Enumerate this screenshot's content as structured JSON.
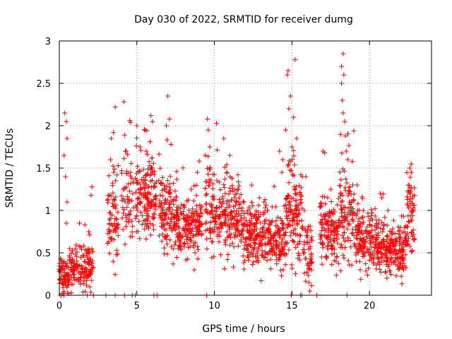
{
  "chart_data": {
    "type": "scatter",
    "title": "Day 030 of 2022, SRMTID for receiver dumg",
    "xlabel": "GPS time / hours",
    "ylabel": "SRMTID / TECUs",
    "xlim": [
      0,
      24
    ],
    "ylim": [
      0,
      3
    ],
    "xticks": [
      0,
      5,
      10,
      15,
      20
    ],
    "yticks": [
      0,
      0.5,
      1,
      1.5,
      2,
      2.5,
      3
    ],
    "ytick_labels": [
      "0",
      "0.5",
      "1",
      "1.5",
      "2",
      "2.5",
      "3"
    ],
    "grid": true,
    "marker": "+",
    "color": "#ff0000",
    "segments": [
      {
        "t0": 0.0,
        "t1": 0.6,
        "base": 0.22,
        "spread": 0.15,
        "n": 70,
        "spikes": [
          [
            0.35,
            2.15
          ],
          [
            0.45,
            2.05
          ],
          [
            0.5,
            1.85
          ],
          [
            0.3,
            1.65
          ],
          [
            0.4,
            1.4
          ],
          [
            0.5,
            1.1
          ],
          [
            0.45,
            0.85
          ]
        ]
      },
      {
        "t0": 0.6,
        "t1": 2.2,
        "base": 0.32,
        "spread": 0.18,
        "n": 150,
        "spikes": [
          [
            1.3,
            0.85
          ],
          [
            1.9,
            0.75
          ],
          [
            2.1,
            1.28
          ],
          [
            2.05,
            1.18
          ]
        ]
      },
      {
        "t0": 3.1,
        "t1": 3.8,
        "base": 0.9,
        "spread": 0.4,
        "n": 70,
        "spikes": [
          [
            3.35,
            1.85
          ],
          [
            3.6,
            2.22
          ],
          [
            3.3,
            1.6
          ],
          [
            3.5,
            1.45
          ]
        ]
      },
      {
        "t0": 4.0,
        "t1": 4.8,
        "base": 1.1,
        "spread": 0.35,
        "n": 60,
        "spikes": [
          [
            4.3,
            1.7
          ],
          [
            4.6,
            1.45
          ]
        ]
      },
      {
        "t0": 4.9,
        "t1": 6.3,
        "base": 1.15,
        "spread": 0.35,
        "n": 160,
        "spikes": [
          [
            5.0,
            2.0
          ],
          [
            5.2,
            1.75
          ],
          [
            5.9,
            2.12
          ],
          [
            6.0,
            2.05
          ],
          [
            5.6,
            1.7
          ]
        ]
      },
      {
        "t0": 6.4,
        "t1": 7.6,
        "base": 0.95,
        "spread": 0.32,
        "n": 140,
        "spikes": [
          [
            7.0,
            2.35
          ],
          [
            7.1,
            2.08
          ],
          [
            6.9,
            2.0
          ],
          [
            7.2,
            1.78
          ]
        ]
      },
      {
        "t0": 7.6,
        "t1": 9.2,
        "base": 0.8,
        "spread": 0.25,
        "n": 170,
        "spikes": [
          [
            8.5,
            1.25
          ],
          [
            8.9,
            1.45
          ],
          [
            8.7,
            0.3
          ]
        ]
      },
      {
        "t0": 9.4,
        "t1": 10.2,
        "base": 0.95,
        "spread": 0.35,
        "n": 80,
        "spikes": [
          [
            9.55,
            2.08
          ],
          [
            9.6,
            1.95
          ],
          [
            9.7,
            1.75
          ],
          [
            9.4,
            1.65
          ]
        ]
      },
      {
        "t0": 10.2,
        "t1": 11.8,
        "base": 0.85,
        "spread": 0.3,
        "n": 170,
        "spikes": [
          [
            10.6,
            1.85
          ],
          [
            11.0,
            1.65
          ],
          [
            10.8,
            1.45
          ]
        ]
      },
      {
        "t0": 11.8,
        "t1": 13.6,
        "base": 0.68,
        "spread": 0.25,
        "n": 200,
        "spikes": [
          [
            12.4,
            1.3
          ],
          [
            13.2,
            1.1
          ],
          [
            12.9,
            1.15
          ]
        ]
      },
      {
        "t0": 13.6,
        "t1": 14.6,
        "base": 0.62,
        "spread": 0.22,
        "n": 110,
        "spikes": [
          [
            14.2,
            1.7
          ],
          [
            14.4,
            1.6
          ],
          [
            14.35,
            1.45
          ]
        ]
      },
      {
        "t0": 14.6,
        "t1": 15.7,
        "base": 0.95,
        "spread": 0.4,
        "n": 130,
        "spikes": [
          [
            14.75,
            2.65
          ],
          [
            14.7,
            2.6
          ],
          [
            15.2,
            2.78
          ],
          [
            14.9,
            2.35
          ],
          [
            14.8,
            2.2
          ],
          [
            15.1,
            2.1
          ],
          [
            15.3,
            1.85
          ],
          [
            15.0,
            1.75
          ],
          [
            14.6,
            1.95
          ]
        ]
      },
      {
        "t0": 15.7,
        "t1": 16.3,
        "base": 0.5,
        "spread": 0.25,
        "n": 50,
        "spikes": [
          [
            15.9,
            1.4
          ],
          [
            15.8,
            1.0
          ],
          [
            16.1,
            0.15
          ],
          [
            16.15,
            0.05
          ]
        ]
      },
      {
        "t0": 16.8,
        "t1": 18.0,
        "base": 0.7,
        "spread": 0.28,
        "n": 130,
        "spikes": [
          [
            17.0,
            1.7
          ],
          [
            17.1,
            1.68
          ],
          [
            17.5,
            1.25
          ],
          [
            17.3,
            1.15
          ]
        ]
      },
      {
        "t0": 18.0,
        "t1": 19.0,
        "base": 1.0,
        "spread": 0.4,
        "n": 110,
        "spikes": [
          [
            18.3,
            2.85
          ],
          [
            18.2,
            2.7
          ],
          [
            18.35,
            2.6
          ],
          [
            18.2,
            2.5
          ],
          [
            18.25,
            2.3
          ],
          [
            18.3,
            2.15
          ],
          [
            18.4,
            2.05
          ],
          [
            18.45,
            1.88
          ],
          [
            18.5,
            1.7
          ],
          [
            18.6,
            1.6
          ]
        ]
      },
      {
        "t0": 19.0,
        "t1": 20.4,
        "base": 0.65,
        "spread": 0.25,
        "n": 150,
        "spikes": [
          [
            19.2,
            1.3
          ],
          [
            19.6,
            1.0
          ],
          [
            19.4,
            0.3
          ]
        ]
      },
      {
        "t0": 20.4,
        "t1": 21.6,
        "base": 0.55,
        "spread": 0.2,
        "n": 140,
        "spikes": [
          [
            20.7,
            1.2
          ],
          [
            20.8,
            1.15
          ],
          [
            21.2,
            1.0
          ]
        ]
      },
      {
        "t0": 21.6,
        "t1": 22.4,
        "base": 0.5,
        "spread": 0.2,
        "n": 90,
        "spikes": [
          [
            22.0,
            0.8
          ],
          [
            22.2,
            0.3
          ]
        ]
      },
      {
        "t0": 22.4,
        "t1": 22.9,
        "base": 0.9,
        "spread": 0.35,
        "n": 60,
        "spikes": [
          [
            22.6,
            1.5
          ],
          [
            22.7,
            1.45
          ],
          [
            22.5,
            1.3
          ]
        ]
      }
    ],
    "zero_points": [
      0.05,
      0.15,
      0.3,
      1.8,
      2.2,
      3.0,
      3.6,
      4.2,
      4.7,
      4.9,
      6.1,
      6.3,
      9.5,
      14.95,
      15.55,
      15.65,
      16.6,
      18.55
    ]
  }
}
